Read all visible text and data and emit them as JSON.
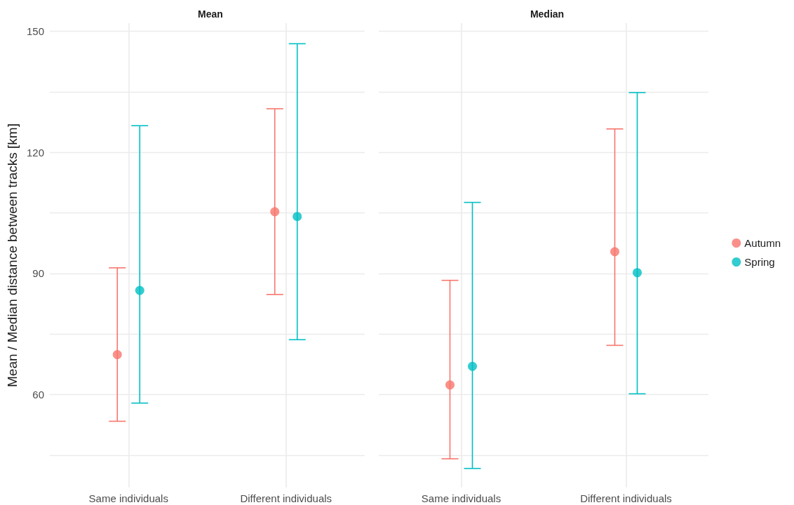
{
  "chart_data": [
    {
      "type": "scatter",
      "title": "Mean",
      "ylabel": "Mean / Median distance between tracks [km]",
      "categories": [
        "Same individuals",
        "Different individuals"
      ],
      "ylim": [
        37,
        152
      ],
      "yticks": [
        {
          "value": 45,
          "label": null
        },
        60,
        {
          "value": 75,
          "label": null
        },
        90,
        {
          "value": 105,
          "label": null
        },
        120,
        {
          "value": 135,
          "label": null
        },
        150
      ],
      "grid": true,
      "legend": false,
      "marker": "circle",
      "series": [
        {
          "color": "#f8766d",
          "values": [
            69.9,
            105.3
          ],
          "errors": [
            [
              53.4,
              91.4
            ],
            [
              84.8,
              130.8
            ]
          ]
        },
        {
          "color": "#00bfc4",
          "values": [
            85.8,
            104.1
          ],
          "errors": [
            [
              57.9,
              126.6
            ],
            [
              73.6,
              146.9
            ]
          ]
        }
      ]
    },
    {
      "type": "scatter",
      "title": "Median",
      "categories": [
        "Same individuals",
        "Different individuals"
      ],
      "ylim": [
        37,
        152
      ],
      "yticks": [
        {
          "value": 45,
          "label": null
        },
        60,
        {
          "value": 75,
          "label": null
        },
        90,
        {
          "value": 105,
          "label": null
        },
        120,
        {
          "value": 135,
          "label": null
        },
        150
      ],
      "tick_labels": "x",
      "grid": true,
      "legend": "right",
      "marker": "circle",
      "series": [
        {
          "name": "Autumn",
          "color": "#f8766d",
          "values": [
            62.4,
            95.4
          ],
          "errors": [
            [
              44.1,
              88.3
            ],
            [
              72.2,
              125.8
            ]
          ]
        },
        {
          "name": "Spring",
          "color": "#00bfc4",
          "values": [
            67.0,
            90.2
          ],
          "errors": [
            [
              41.7,
              107.6
            ],
            [
              60.2,
              134.8
            ]
          ]
        }
      ]
    }
  ]
}
